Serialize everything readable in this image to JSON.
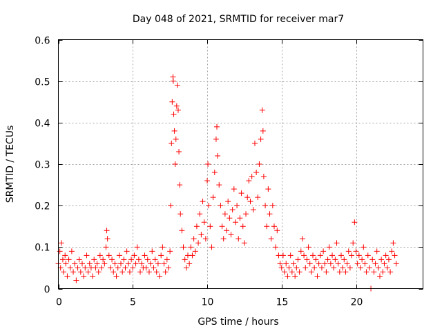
{
  "chart_data": {
    "type": "scatter",
    "title": "Day 048 of 2021, SRMTID for receiver mar7",
    "xlabel": "GPS time / hours",
    "ylabel": "SRMTID / TECUs",
    "xlim": [
      0,
      24.5
    ],
    "ylim": [
      0,
      0.6
    ],
    "xticks": [
      0,
      5,
      10,
      15,
      20
    ],
    "xtick_labels": [
      "0",
      "5",
      "10",
      "15",
      "20"
    ],
    "yticks": [
      0,
      0.1,
      0.2,
      0.3,
      0.4,
      0.5,
      0.6
    ],
    "ytick_labels": [
      "0",
      "0.1",
      "0.2",
      "0.3",
      "0.4",
      "0.5",
      "0.6"
    ],
    "grid": true,
    "marker": "plus",
    "color": "#ff0000",
    "series": [
      {
        "name": "SRMTID",
        "points": [
          [
            0.0,
            0.06
          ],
          [
            0.1,
            0.09
          ],
          [
            0.15,
            0.05
          ],
          [
            0.2,
            0.11
          ],
          [
            0.3,
            0.07
          ],
          [
            0.35,
            0.04
          ],
          [
            0.45,
            0.08
          ],
          [
            0.5,
            0.06
          ],
          [
            0.6,
            0.03
          ],
          [
            0.7,
            0.07
          ],
          [
            0.8,
            0.05
          ],
          [
            0.9,
            0.09
          ],
          [
            1.0,
            0.04
          ],
          [
            1.1,
            0.06
          ],
          [
            1.2,
            0.02
          ],
          [
            1.3,
            0.05
          ],
          [
            1.4,
            0.07
          ],
          [
            1.5,
            0.04
          ],
          [
            1.6,
            0.06
          ],
          [
            1.7,
            0.03
          ],
          [
            1.8,
            0.05
          ],
          [
            1.9,
            0.08
          ],
          [
            2.0,
            0.04
          ],
          [
            2.1,
            0.06
          ],
          [
            2.2,
            0.05
          ],
          [
            2.3,
            0.03
          ],
          [
            2.4,
            0.07
          ],
          [
            2.5,
            0.05
          ],
          [
            2.6,
            0.06
          ],
          [
            2.7,
            0.04
          ],
          [
            2.8,
            0.08
          ],
          [
            2.9,
            0.05
          ],
          [
            3.0,
            0.07
          ],
          [
            3.1,
            0.06
          ],
          [
            3.2,
            0.1
          ],
          [
            3.25,
            0.14
          ],
          [
            3.3,
            0.12
          ],
          [
            3.4,
            0.08
          ],
          [
            3.5,
            0.05
          ],
          [
            3.6,
            0.07
          ],
          [
            3.7,
            0.04
          ],
          [
            3.8,
            0.06
          ],
          [
            3.9,
            0.03
          ],
          [
            4.0,
            0.05
          ],
          [
            4.1,
            0.08
          ],
          [
            4.2,
            0.06
          ],
          [
            4.3,
            0.04
          ],
          [
            4.4,
            0.07
          ],
          [
            4.5,
            0.05
          ],
          [
            4.6,
            0.09
          ],
          [
            4.7,
            0.06
          ],
          [
            4.8,
            0.04
          ],
          [
            4.9,
            0.07
          ],
          [
            5.0,
            0.05
          ],
          [
            5.1,
            0.08
          ],
          [
            5.2,
            0.06
          ],
          [
            5.3,
            0.1
          ],
          [
            5.4,
            0.07
          ],
          [
            5.5,
            0.04
          ],
          [
            5.6,
            0.06
          ],
          [
            5.7,
            0.05
          ],
          [
            5.8,
            0.08
          ],
          [
            5.9,
            0.05
          ],
          [
            6.0,
            0.07
          ],
          [
            6.1,
            0.04
          ],
          [
            6.2,
            0.06
          ],
          [
            6.3,
            0.09
          ],
          [
            6.4,
            0.05
          ],
          [
            6.5,
            0.07
          ],
          [
            6.6,
            0.04
          ],
          [
            6.7,
            0.06
          ],
          [
            6.8,
            0.03
          ],
          [
            6.9,
            0.08
          ],
          [
            7.0,
            0.1
          ],
          [
            7.1,
            0.06
          ],
          [
            7.2,
            0.04
          ],
          [
            7.3,
            0.07
          ],
          [
            7.4,
            0.05
          ],
          [
            7.5,
            0.09
          ],
          [
            7.55,
            0.2
          ],
          [
            7.6,
            0.35
          ],
          [
            7.65,
            0.45
          ],
          [
            7.7,
            0.51
          ],
          [
            7.72,
            0.5
          ],
          [
            7.75,
            0.42
          ],
          [
            7.8,
            0.38
          ],
          [
            7.85,
            0.3
          ],
          [
            7.9,
            0.36
          ],
          [
            7.95,
            0.44
          ],
          [
            8.0,
            0.49
          ],
          [
            8.05,
            0.43
          ],
          [
            8.1,
            0.33
          ],
          [
            8.15,
            0.25
          ],
          [
            8.2,
            0.18
          ],
          [
            8.3,
            0.14
          ],
          [
            8.4,
            0.1
          ],
          [
            8.5,
            0.07
          ],
          [
            8.6,
            0.05
          ],
          [
            8.7,
            0.08
          ],
          [
            8.8,
            0.06
          ],
          [
            8.9,
            0.1
          ],
          [
            9.0,
            0.08
          ],
          [
            9.1,
            0.12
          ],
          [
            9.2,
            0.09
          ],
          [
            9.3,
            0.15
          ],
          [
            9.4,
            0.11
          ],
          [
            9.5,
            0.18
          ],
          [
            9.6,
            0.13
          ],
          [
            9.7,
            0.21
          ],
          [
            9.8,
            0.16
          ],
          [
            9.9,
            0.12
          ],
          [
            10.0,
            0.26
          ],
          [
            10.05,
            0.3
          ],
          [
            10.1,
            0.2
          ],
          [
            10.2,
            0.15
          ],
          [
            10.3,
            0.1
          ],
          [
            10.4,
            0.22
          ],
          [
            10.5,
            0.28
          ],
          [
            10.6,
            0.36
          ],
          [
            10.65,
            0.39
          ],
          [
            10.7,
            0.32
          ],
          [
            10.8,
            0.25
          ],
          [
            10.9,
            0.2
          ],
          [
            11.0,
            0.15
          ],
          [
            11.1,
            0.12
          ],
          [
            11.2,
            0.18
          ],
          [
            11.3,
            0.14
          ],
          [
            11.4,
            0.21
          ],
          [
            11.5,
            0.17
          ],
          [
            11.6,
            0.13
          ],
          [
            11.7,
            0.19
          ],
          [
            11.8,
            0.24
          ],
          [
            11.9,
            0.16
          ],
          [
            12.0,
            0.2
          ],
          [
            12.1,
            0.12
          ],
          [
            12.2,
            0.17
          ],
          [
            12.3,
            0.23
          ],
          [
            12.4,
            0.15
          ],
          [
            12.5,
            0.11
          ],
          [
            12.6,
            0.18
          ],
          [
            12.7,
            0.22
          ],
          [
            12.8,
            0.26
          ],
          [
            12.9,
            0.21
          ],
          [
            13.0,
            0.27
          ],
          [
            13.1,
            0.19
          ],
          [
            13.2,
            0.35
          ],
          [
            13.3,
            0.28
          ],
          [
            13.4,
            0.22
          ],
          [
            13.5,
            0.3
          ],
          [
            13.6,
            0.36
          ],
          [
            13.7,
            0.43
          ],
          [
            13.75,
            0.38
          ],
          [
            13.8,
            0.27
          ],
          [
            13.9,
            0.2
          ],
          [
            14.0,
            0.15
          ],
          [
            14.1,
            0.24
          ],
          [
            14.2,
            0.18
          ],
          [
            14.3,
            0.12
          ],
          [
            14.4,
            0.2
          ],
          [
            14.5,
            0.15
          ],
          [
            14.6,
            0.1
          ],
          [
            14.7,
            0.14
          ],
          [
            14.8,
            0.08
          ],
          [
            14.9,
            0.06
          ],
          [
            15.0,
            0.05
          ],
          [
            15.1,
            0.08
          ],
          [
            15.2,
            0.04
          ],
          [
            15.3,
            0.06
          ],
          [
            15.4,
            0.03
          ],
          [
            15.5,
            0.05
          ],
          [
            15.6,
            0.08
          ],
          [
            15.7,
            0.04
          ],
          [
            15.8,
            0.06
          ],
          [
            15.9,
            0.03
          ],
          [
            16.0,
            0.05
          ],
          [
            16.1,
            0.07
          ],
          [
            16.2,
            0.04
          ],
          [
            16.3,
            0.09
          ],
          [
            16.4,
            0.12
          ],
          [
            16.5,
            0.08
          ],
          [
            16.6,
            0.05
          ],
          [
            16.7,
            0.07
          ],
          [
            16.8,
            0.1
          ],
          [
            16.9,
            0.06
          ],
          [
            17.0,
            0.04
          ],
          [
            17.1,
            0.08
          ],
          [
            17.2,
            0.05
          ],
          [
            17.3,
            0.07
          ],
          [
            17.4,
            0.03
          ],
          [
            17.5,
            0.06
          ],
          [
            17.6,
            0.08
          ],
          [
            17.7,
            0.05
          ],
          [
            17.8,
            0.09
          ],
          [
            17.9,
            0.06
          ],
          [
            18.0,
            0.04
          ],
          [
            18.1,
            0.07
          ],
          [
            18.2,
            0.1
          ],
          [
            18.3,
            0.06
          ],
          [
            18.4,
            0.08
          ],
          [
            18.5,
            0.05
          ],
          [
            18.6,
            0.07
          ],
          [
            18.7,
            0.11
          ],
          [
            18.8,
            0.06
          ],
          [
            18.9,
            0.04
          ],
          [
            19.0,
            0.08
          ],
          [
            19.1,
            0.05
          ],
          [
            19.2,
            0.07
          ],
          [
            19.3,
            0.04
          ],
          [
            19.4,
            0.06
          ],
          [
            19.5,
            0.09
          ],
          [
            19.6,
            0.05
          ],
          [
            19.7,
            0.08
          ],
          [
            19.8,
            0.11
          ],
          [
            19.9,
            0.16
          ],
          [
            20.0,
            0.09
          ],
          [
            20.1,
            0.06
          ],
          [
            20.2,
            0.08
          ],
          [
            20.3,
            0.05
          ],
          [
            20.4,
            0.07
          ],
          [
            20.5,
            0.1
          ],
          [
            20.6,
            0.06
          ],
          [
            20.7,
            0.04
          ],
          [
            20.8,
            0.08
          ],
          [
            20.9,
            0.05
          ],
          [
            21.0,
            0.0
          ],
          [
            21.1,
            0.07
          ],
          [
            21.2,
            0.04
          ],
          [
            21.3,
            0.06
          ],
          [
            21.4,
            0.09
          ],
          [
            21.5,
            0.05
          ],
          [
            21.6,
            0.03
          ],
          [
            21.7,
            0.07
          ],
          [
            21.8,
            0.04
          ],
          [
            21.9,
            0.06
          ],
          [
            22.0,
            0.08
          ],
          [
            22.1,
            0.05
          ],
          [
            22.2,
            0.07
          ],
          [
            22.3,
            0.04
          ],
          [
            22.4,
            0.09
          ],
          [
            22.5,
            0.11
          ],
          [
            22.6,
            0.08
          ],
          [
            22.7,
            0.06
          ]
        ]
      }
    ]
  }
}
